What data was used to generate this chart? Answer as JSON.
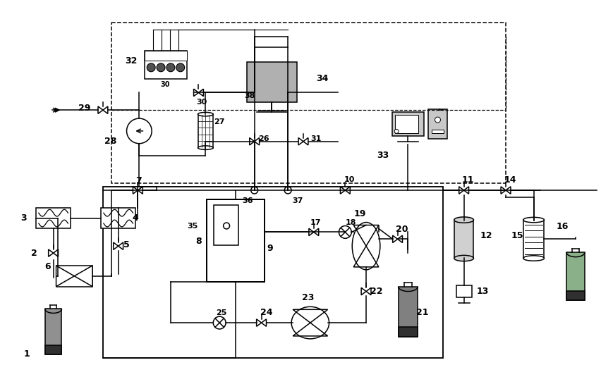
{
  "fig_w": 8.53,
  "fig_h": 5.45,
  "dpi": 100,
  "lw": 1.1,
  "lc": "#000000",
  "bg": "#ffffff"
}
